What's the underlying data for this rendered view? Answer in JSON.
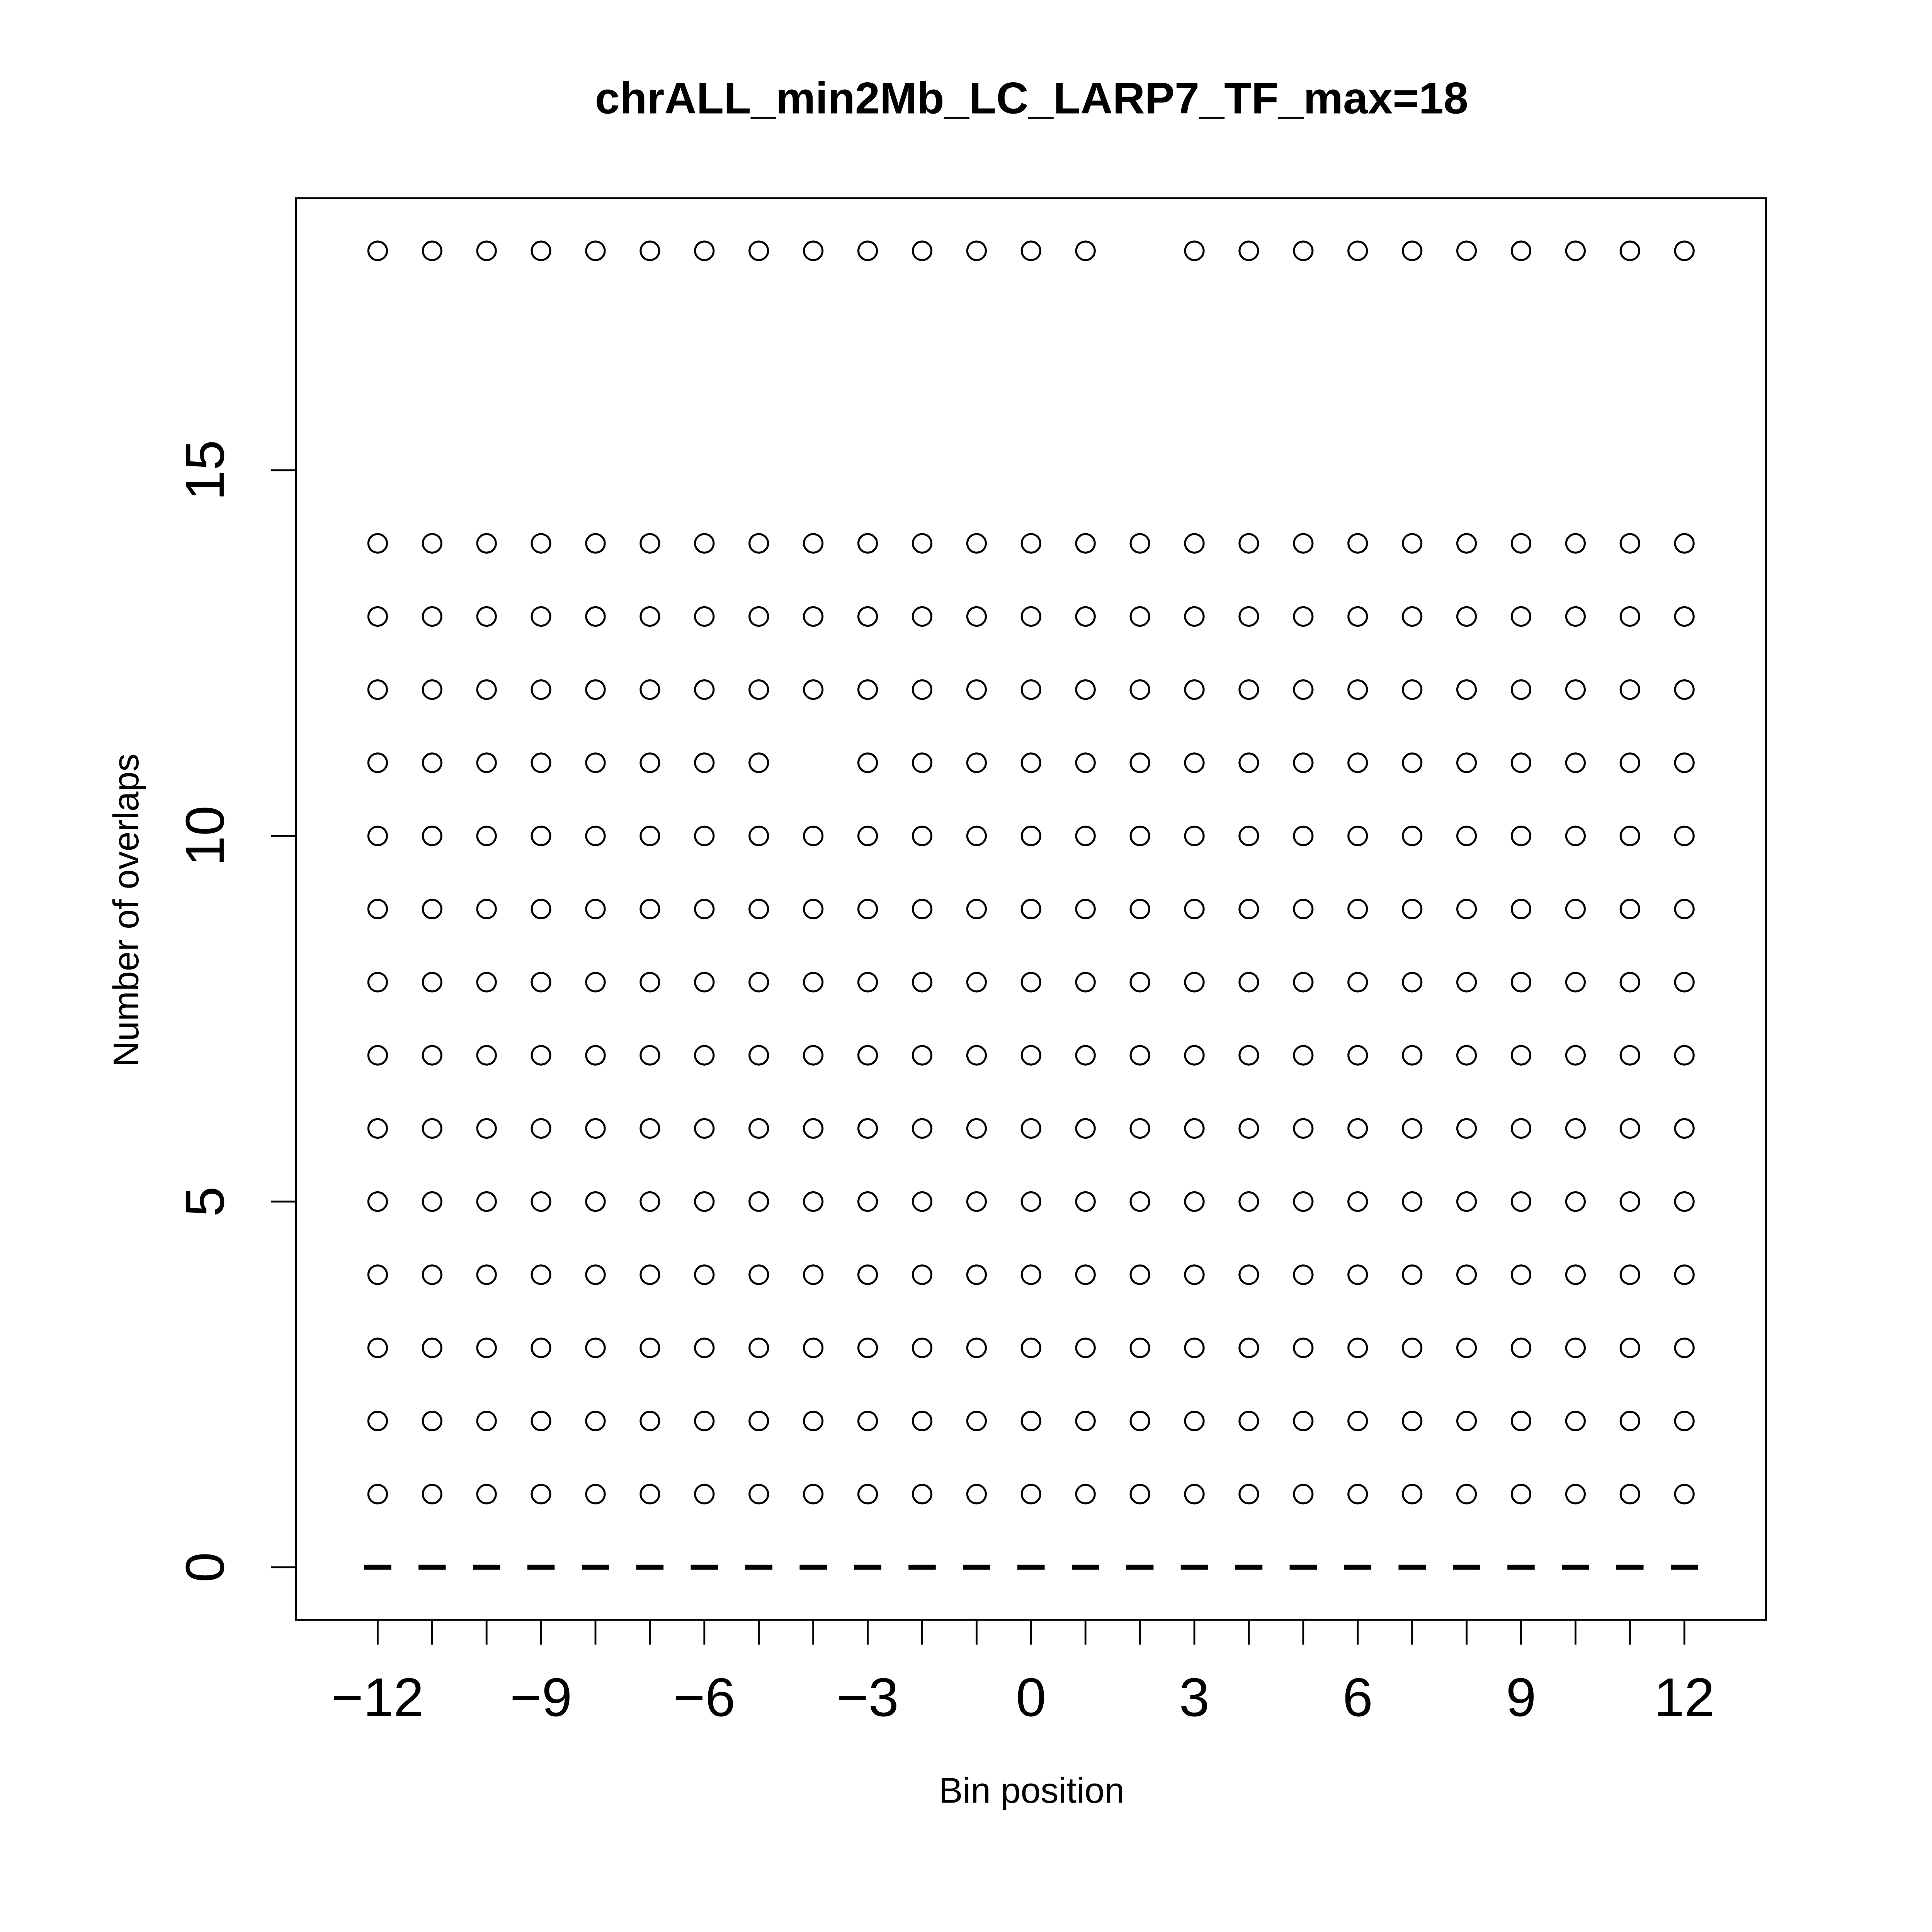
{
  "chart_data": {
    "type": "scatter",
    "title": "chrALL_min2Mb_LC_LARP7_TF_max=18",
    "xlabel": "Bin position",
    "ylabel": "Number of overlaps",
    "xlim": [
      -13.5,
      13.5
    ],
    "ylim": [
      -0.72,
      18.72
    ],
    "xticks": [
      {
        "value": -12,
        "label": "−12"
      },
      {
        "value": -9,
        "label": "−9"
      },
      {
        "value": -6,
        "label": "−6"
      },
      {
        "value": -3,
        "label": "−3"
      },
      0,
      3,
      6,
      9,
      12
    ],
    "x_minor_ticks": [
      -11,
      -10,
      -8,
      -7,
      -5,
      -4,
      -2,
      -1,
      1,
      2,
      4,
      5,
      7,
      8,
      10,
      11
    ],
    "yticks": [
      0,
      5,
      10,
      15
    ],
    "color": "#000000",
    "series": [
      {
        "marker": "dash",
        "x": [
          -12,
          -11,
          -10,
          -9,
          -8,
          -7,
          -6,
          -5,
          -4,
          -3,
          -2,
          -1,
          0,
          1,
          2,
          3,
          4,
          5,
          6,
          7,
          8,
          9,
          10,
          11,
          12
        ],
        "values": [
          0,
          0,
          0,
          0,
          0,
          0,
          0,
          0,
          0,
          0,
          0,
          0,
          0,
          0,
          0,
          0,
          0,
          0,
          0,
          0,
          0,
          0,
          0,
          0,
          0
        ]
      },
      {
        "marker": "circle",
        "x": [
          -12,
          -11,
          -10,
          -9,
          -8,
          -7,
          -6,
          -5,
          -4,
          -3,
          -2,
          -1,
          0,
          1,
          2,
          3,
          4,
          5,
          6,
          7,
          8,
          9,
          10,
          11,
          12
        ],
        "values": [
          1,
          1,
          1,
          1,
          1,
          1,
          1,
          1,
          1,
          1,
          1,
          1,
          1,
          1,
          1,
          1,
          1,
          1,
          1,
          1,
          1,
          1,
          1,
          1,
          1
        ]
      },
      {
        "marker": "circle",
        "x": [
          -12,
          -11,
          -10,
          -9,
          -8,
          -7,
          -6,
          -5,
          -4,
          -3,
          -2,
          -1,
          0,
          1,
          2,
          3,
          4,
          5,
          6,
          7,
          8,
          9,
          10,
          11,
          12
        ],
        "values": [
          2,
          2,
          2,
          2,
          2,
          2,
          2,
          2,
          2,
          2,
          2,
          2,
          2,
          2,
          2,
          2,
          2,
          2,
          2,
          2,
          2,
          2,
          2,
          2,
          2
        ]
      },
      {
        "marker": "circle",
        "x": [
          -12,
          -11,
          -10,
          -9,
          -8,
          -7,
          -6,
          -5,
          -4,
          -3,
          -2,
          -1,
          0,
          1,
          2,
          3,
          4,
          5,
          6,
          7,
          8,
          9,
          10,
          11,
          12
        ],
        "values": [
          3,
          3,
          3,
          3,
          3,
          3,
          3,
          3,
          3,
          3,
          3,
          3,
          3,
          3,
          3,
          3,
          3,
          3,
          3,
          3,
          3,
          3,
          3,
          3,
          3
        ]
      },
      {
        "marker": "circle",
        "x": [
          -12,
          -11,
          -10,
          -9,
          -8,
          -7,
          -6,
          -5,
          -4,
          -3,
          -2,
          -1,
          0,
          1,
          2,
          3,
          4,
          5,
          6,
          7,
          8,
          9,
          10,
          11,
          12
        ],
        "values": [
          4,
          4,
          4,
          4,
          4,
          4,
          4,
          4,
          4,
          4,
          4,
          4,
          4,
          4,
          4,
          4,
          4,
          4,
          4,
          4,
          4,
          4,
          4,
          4,
          4
        ]
      },
      {
        "marker": "circle",
        "x": [
          -12,
          -11,
          -10,
          -9,
          -8,
          -7,
          -6,
          -5,
          -4,
          -3,
          -2,
          -1,
          0,
          1,
          2,
          3,
          4,
          5,
          6,
          7,
          8,
          9,
          10,
          11,
          12
        ],
        "values": [
          5,
          5,
          5,
          5,
          5,
          5,
          5,
          5,
          5,
          5,
          5,
          5,
          5,
          5,
          5,
          5,
          5,
          5,
          5,
          5,
          5,
          5,
          5,
          5,
          5
        ]
      },
      {
        "marker": "circle",
        "x": [
          -12,
          -11,
          -10,
          -9,
          -8,
          -7,
          -6,
          -5,
          -4,
          -3,
          -2,
          -1,
          0,
          1,
          2,
          3,
          4,
          5,
          6,
          7,
          8,
          9,
          10,
          11,
          12
        ],
        "values": [
          6,
          6,
          6,
          6,
          6,
          6,
          6,
          6,
          6,
          6,
          6,
          6,
          6,
          6,
          6,
          6,
          6,
          6,
          6,
          6,
          6,
          6,
          6,
          6,
          6
        ]
      },
      {
        "marker": "circle",
        "x": [
          -12,
          -11,
          -10,
          -9,
          -8,
          -7,
          -6,
          -5,
          -4,
          -3,
          -2,
          -1,
          0,
          1,
          2,
          3,
          4,
          5,
          6,
          7,
          8,
          9,
          10,
          11,
          12
        ],
        "values": [
          7,
          7,
          7,
          7,
          7,
          7,
          7,
          7,
          7,
          7,
          7,
          7,
          7,
          7,
          7,
          7,
          7,
          7,
          7,
          7,
          7,
          7,
          7,
          7,
          7
        ]
      },
      {
        "marker": "circle",
        "x": [
          -12,
          -11,
          -10,
          -9,
          -8,
          -7,
          -6,
          -5,
          -4,
          -3,
          -2,
          -1,
          0,
          1,
          2,
          3,
          4,
          5,
          6,
          7,
          8,
          9,
          10,
          11,
          12
        ],
        "values": [
          8,
          8,
          8,
          8,
          8,
          8,
          8,
          8,
          8,
          8,
          8,
          8,
          8,
          8,
          8,
          8,
          8,
          8,
          8,
          8,
          8,
          8,
          8,
          8,
          8
        ]
      },
      {
        "marker": "circle",
        "x": [
          -12,
          -11,
          -10,
          -9,
          -8,
          -7,
          -6,
          -5,
          -4,
          -3,
          -2,
          -1,
          0,
          1,
          2,
          3,
          4,
          5,
          6,
          7,
          8,
          9,
          10,
          11,
          12
        ],
        "values": [
          9,
          9,
          9,
          9,
          9,
          9,
          9,
          9,
          9,
          9,
          9,
          9,
          9,
          9,
          9,
          9,
          9,
          9,
          9,
          9,
          9,
          9,
          9,
          9,
          9
        ]
      },
      {
        "marker": "circle",
        "x": [
          -12,
          -11,
          -10,
          -9,
          -8,
          -7,
          -6,
          -5,
          -4,
          -3,
          -2,
          -1,
          0,
          1,
          2,
          3,
          4,
          5,
          6,
          7,
          8,
          9,
          10,
          11,
          12
        ],
        "values": [
          10,
          10,
          10,
          10,
          10,
          10,
          10,
          10,
          10,
          10,
          10,
          10,
          10,
          10,
          10,
          10,
          10,
          10,
          10,
          10,
          10,
          10,
          10,
          10,
          10
        ]
      },
      {
        "marker": "circle",
        "x": [
          -12,
          -11,
          -10,
          -9,
          -8,
          -7,
          -6,
          -5,
          -3,
          -2,
          -1,
          0,
          1,
          2,
          3,
          4,
          5,
          6,
          7,
          8,
          9,
          10,
          11,
          12
        ],
        "values": [
          11,
          11,
          11,
          11,
          11,
          11,
          11,
          11,
          11,
          11,
          11,
          11,
          11,
          11,
          11,
          11,
          11,
          11,
          11,
          11,
          11,
          11,
          11,
          11
        ]
      },
      {
        "marker": "circle",
        "x": [
          -12,
          -11,
          -10,
          -9,
          -8,
          -7,
          -6,
          -5,
          -4,
          -3,
          -2,
          -1,
          0,
          1,
          2,
          3,
          4,
          5,
          6,
          7,
          8,
          9,
          10,
          11,
          12
        ],
        "values": [
          12,
          12,
          12,
          12,
          12,
          12,
          12,
          12,
          12,
          12,
          12,
          12,
          12,
          12,
          12,
          12,
          12,
          12,
          12,
          12,
          12,
          12,
          12,
          12,
          12
        ]
      },
      {
        "marker": "circle",
        "x": [
          -12,
          -11,
          -10,
          -9,
          -8,
          -7,
          -6,
          -5,
          -4,
          -3,
          -2,
          -1,
          0,
          1,
          2,
          3,
          4,
          5,
          6,
          7,
          8,
          9,
          10,
          11,
          12
        ],
        "values": [
          13,
          13,
          13,
          13,
          13,
          13,
          13,
          13,
          13,
          13,
          13,
          13,
          13,
          13,
          13,
          13,
          13,
          13,
          13,
          13,
          13,
          13,
          13,
          13,
          13
        ]
      },
      {
        "marker": "circle",
        "x": [
          -12,
          -11,
          -10,
          -9,
          -8,
          -7,
          -6,
          -5,
          -4,
          -3,
          -2,
          -1,
          0,
          1,
          2,
          3,
          4,
          5,
          6,
          7,
          8,
          9,
          10,
          11,
          12
        ],
        "values": [
          14,
          14,
          14,
          14,
          14,
          14,
          14,
          14,
          14,
          14,
          14,
          14,
          14,
          14,
          14,
          14,
          14,
          14,
          14,
          14,
          14,
          14,
          14,
          14,
          14
        ]
      },
      {
        "marker": "circle",
        "x": [
          -12,
          -11,
          -10,
          -9,
          -8,
          -7,
          -6,
          -5,
          -4,
          -3,
          -2,
          -1,
          0,
          1,
          3,
          4,
          5,
          6,
          7,
          8,
          9,
          10,
          11,
          12
        ],
        "values": [
          18,
          18,
          18,
          18,
          18,
          18,
          18,
          18,
          18,
          18,
          18,
          18,
          18,
          18,
          18,
          18,
          18,
          18,
          18,
          18,
          18,
          18,
          18,
          18
        ]
      }
    ]
  }
}
